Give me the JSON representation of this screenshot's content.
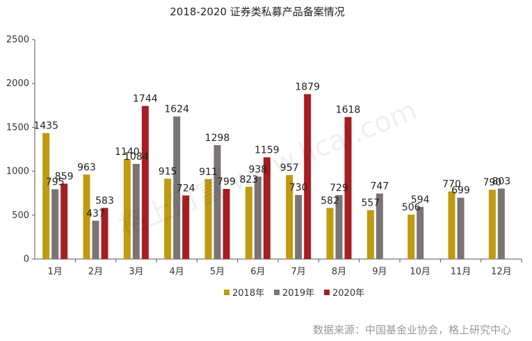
{
  "chart_data": {
    "type": "bar",
    "title": "2018-2020 证券类私募产品备案情况",
    "categories": [
      "1月",
      "2月",
      "3月",
      "4月",
      "5月",
      "6月",
      "7月",
      "8月",
      "9月",
      "10月",
      "11月",
      "12月"
    ],
    "series": [
      {
        "name": "2018年",
        "color": "#C09A0F",
        "values": [
          1435,
          963,
          1140,
          915,
          911,
          823,
          957,
          582,
          557,
          506,
          770,
          790
        ]
      },
      {
        "name": "2019年",
        "color": "#7A7474",
        "values": [
          795,
          437,
          1084,
          1624,
          1298,
          938,
          730,
          729,
          747,
          594,
          699,
          803
        ]
      },
      {
        "name": "2020年",
        "color": "#A61E22",
        "values": [
          859,
          583,
          1744,
          724,
          799,
          1159,
          1879,
          1618,
          null,
          null,
          null,
          null
        ]
      }
    ],
    "ylim": [
      0,
      2500
    ],
    "yticks": [
      0,
      500,
      1000,
      1500,
      2000,
      2500
    ],
    "legend_position": "bottom",
    "grid": false
  },
  "source": "数据来源：中国基金业协会，格上研究中心",
  "watermark": "格上财富 www.licai.com"
}
